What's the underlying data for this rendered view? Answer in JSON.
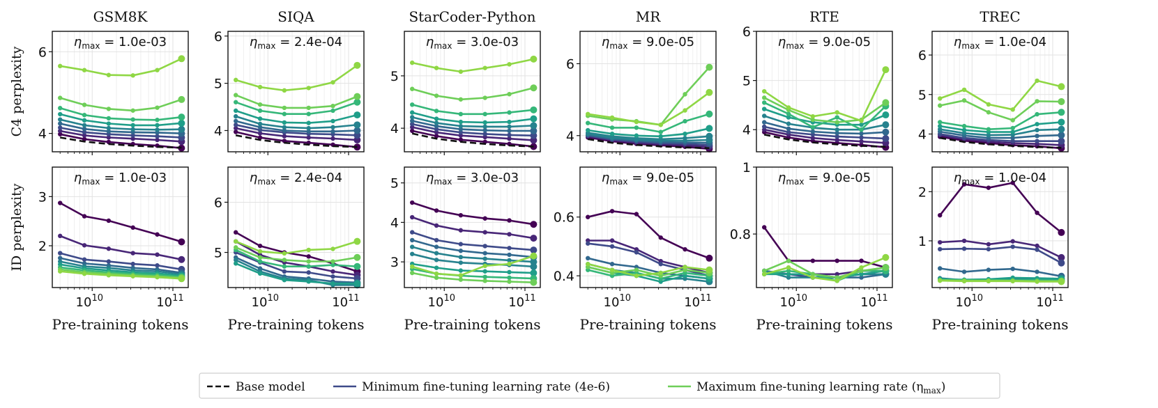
{
  "figure": {
    "row_labels": [
      "C4 perplexity",
      "ID perplexity"
    ],
    "xlabel": "Pre-training tokens",
    "x_ticks": [
      {
        "value": 10000000000,
        "base": "10",
        "exp": "10"
      },
      {
        "value": 100000000000,
        "base": "10",
        "exp": "11"
      }
    ],
    "eta_label": "η",
    "eta_sub": "max",
    "colors": {
      "base": "#111111",
      "ramp": [
        "#440154",
        "#482677",
        "#3e4a89",
        "#31688e",
        "#26828e",
        "#1f9e89",
        "#35b779",
        "#6ece58",
        "#8fd744"
      ]
    }
  },
  "legend": {
    "base_label": "Base model",
    "min_label": "Minimum fine-tuning learning rate (4e-6)",
    "max_label": "Maximum fine-tuning learning rate (η",
    "max_sub": "max",
    "max_close": ")",
    "min_color": "#3e4a89",
    "max_color": "#6ece58"
  },
  "chart_data": [
    {
      "type": "line",
      "task": "GSM8K",
      "title": "GSM8K",
      "row": "C4 perplexity",
      "eta_max": "1.0e-03",
      "ylim": [
        3.55,
        6.5
      ],
      "yticks": [
        4,
        6
      ],
      "x": [
        4000000000.0,
        8000000000.0,
        16000000000.0,
        32000000000.0,
        64000000000.0,
        128000000000.0
      ],
      "base": [
        3.9,
        3.8,
        3.74,
        3.7,
        3.67,
        3.65
      ],
      "series": [
        [
          3.98,
          3.86,
          3.79,
          3.74,
          3.7,
          3.64
        ],
        [
          4.06,
          3.95,
          3.9,
          3.87,
          3.84,
          3.8
        ],
        [
          4.14,
          4.03,
          3.98,
          3.95,
          3.93,
          3.9
        ],
        [
          4.24,
          4.11,
          4.05,
          4.03,
          4.02,
          4.0
        ],
        [
          4.34,
          4.2,
          4.13,
          4.1,
          4.09,
          4.1
        ],
        [
          4.47,
          4.32,
          4.24,
          4.2,
          4.2,
          4.25
        ],
        [
          4.62,
          4.45,
          4.37,
          4.34,
          4.33,
          4.4
        ],
        [
          4.87,
          4.7,
          4.6,
          4.56,
          4.63,
          4.83
        ],
        [
          5.65,
          5.55,
          5.43,
          5.42,
          5.55,
          5.83
        ]
      ]
    },
    {
      "type": "line",
      "task": "SIQA",
      "title": "SIQA",
      "row": "C4 perplexity",
      "eta_max": "2.4e-04",
      "ylim": [
        3.55,
        6.1
      ],
      "yticks": [
        4,
        5,
        6
      ],
      "x": [
        4000000000.0,
        8000000000.0,
        16000000000.0,
        32000000000.0,
        64000000000.0,
        128000000000.0
      ],
      "base": [
        3.9,
        3.8,
        3.74,
        3.7,
        3.67,
        3.65
      ],
      "series": [
        [
          3.97,
          3.85,
          3.78,
          3.74,
          3.7,
          3.65
        ],
        [
          4.05,
          3.94,
          3.88,
          3.85,
          3.83,
          3.8
        ],
        [
          4.12,
          4.01,
          3.96,
          3.93,
          3.92,
          3.9
        ],
        [
          4.2,
          4.07,
          4.0,
          3.98,
          3.98,
          4.0
        ],
        [
          4.3,
          4.14,
          4.07,
          4.05,
          4.07,
          4.12
        ],
        [
          4.42,
          4.25,
          4.17,
          4.16,
          4.2,
          4.33
        ],
        [
          4.6,
          4.42,
          4.35,
          4.35,
          4.42,
          4.6
        ],
        [
          4.75,
          4.55,
          4.48,
          4.48,
          4.52,
          4.72
        ],
        [
          5.07,
          4.92,
          4.85,
          4.9,
          5.02,
          5.38
        ]
      ]
    },
    {
      "type": "line",
      "task": "StarCoder-Python",
      "title": "StarCoder-Python",
      "row": "C4 perplexity",
      "eta_max": "3.0e-03",
      "ylim": [
        3.55,
        5.85
      ],
      "yticks": [
        4,
        5
      ],
      "x": [
        4000000000.0,
        8000000000.0,
        16000000000.0,
        32000000000.0,
        64000000000.0,
        128000000000.0
      ],
      "base": [
        3.9,
        3.8,
        3.74,
        3.7,
        3.67,
        3.65
      ],
      "series": [
        [
          3.95,
          3.85,
          3.78,
          3.74,
          3.7,
          3.65
        ],
        [
          4.02,
          3.92,
          3.86,
          3.83,
          3.8,
          3.77
        ],
        [
          4.08,
          3.98,
          3.92,
          3.89,
          3.87,
          3.86
        ],
        [
          4.14,
          4.04,
          3.98,
          3.96,
          3.95,
          3.95
        ],
        [
          4.21,
          4.1,
          4.04,
          4.03,
          4.03,
          4.05
        ],
        [
          4.3,
          4.18,
          4.12,
          4.11,
          4.12,
          4.18
        ],
        [
          4.45,
          4.33,
          4.27,
          4.27,
          4.3,
          4.35
        ],
        [
          4.75,
          4.62,
          4.55,
          4.58,
          4.65,
          4.77
        ],
        [
          5.25,
          5.15,
          5.08,
          5.15,
          5.22,
          5.32
        ]
      ]
    },
    {
      "type": "line",
      "task": "MR",
      "title": "MR",
      "row": "C4 perplexity",
      "eta_max": "9.0e-05",
      "ylim": [
        3.55,
        6.9
      ],
      "yticks": [
        4,
        6
      ],
      "x": [
        4000000000.0,
        8000000000.0,
        16000000000.0,
        32000000000.0,
        64000000000.0,
        128000000000.0
      ],
      "base": [
        3.9,
        3.8,
        3.74,
        3.7,
        3.67,
        3.65
      ],
      "series": [
        [
          3.95,
          3.84,
          3.77,
          3.73,
          3.69,
          3.63
        ],
        [
          3.98,
          3.87,
          3.8,
          3.76,
          3.73,
          3.69
        ],
        [
          4.0,
          3.89,
          3.83,
          3.79,
          3.77,
          3.74
        ],
        [
          4.02,
          3.91,
          3.86,
          3.82,
          3.81,
          3.8
        ],
        [
          4.05,
          3.94,
          3.89,
          3.86,
          3.86,
          3.88
        ],
        [
          4.08,
          3.98,
          3.93,
          3.9,
          3.93,
          3.98
        ],
        [
          4.15,
          4.05,
          4.0,
          3.98,
          4.05,
          4.2
        ],
        [
          4.35,
          4.22,
          4.22,
          4.1,
          4.4,
          4.6
        ],
        [
          4.55,
          4.45,
          4.4,
          4.3,
          5.15,
          5.9
        ],
        [
          4.6,
          4.5,
          4.38,
          4.3,
          4.7,
          5.2
        ]
      ]
    },
    {
      "type": "line",
      "task": "RTE",
      "title": "RTE",
      "row": "C4 perplexity",
      "eta_max": "9.0e-05",
      "ylim": [
        3.55,
        6.0
      ],
      "yticks": [
        4,
        5,
        6
      ],
      "x": [
        4000000000.0,
        8000000000.0,
        16000000000.0,
        32000000000.0,
        64000000000.0,
        128000000000.0
      ],
      "base": [
        3.9,
        3.8,
        3.74,
        3.7,
        3.67,
        3.65
      ],
      "series": [
        [
          3.95,
          3.84,
          3.77,
          3.73,
          3.69,
          3.64
        ],
        [
          4.0,
          3.9,
          3.83,
          3.79,
          3.76,
          3.73
        ],
        [
          4.06,
          3.95,
          3.9,
          3.86,
          3.84,
          3.82
        ],
        [
          4.15,
          4.02,
          3.96,
          3.93,
          3.92,
          3.95
        ],
        [
          4.28,
          4.12,
          4.04,
          4.0,
          4.0,
          4.1
        ],
        [
          4.42,
          4.25,
          4.15,
          4.1,
          4.1,
          4.3
        ],
        [
          4.55,
          4.32,
          4.05,
          4.25,
          4.0,
          4.48
        ],
        [
          4.65,
          4.4,
          4.2,
          4.15,
          4.2,
          4.55
        ],
        [
          4.78,
          4.45,
          4.27,
          4.35,
          4.18,
          5.22
        ]
      ]
    },
    {
      "type": "line",
      "task": "TREC",
      "title": "TREC",
      "row": "C4 perplexity",
      "eta_max": "1.0e-04",
      "ylim": [
        3.55,
        6.6
      ],
      "yticks": [
        4,
        5,
        6
      ],
      "x": [
        4000000000.0,
        8000000000.0,
        16000000000.0,
        32000000000.0,
        64000000000.0,
        128000000000.0
      ],
      "base": [
        3.9,
        3.8,
        3.74,
        3.7,
        3.67,
        3.65
      ],
      "series": [
        [
          3.93,
          3.83,
          3.77,
          3.72,
          3.69,
          3.64
        ],
        [
          3.97,
          3.87,
          3.81,
          3.77,
          3.75,
          3.72
        ],
        [
          4.0,
          3.9,
          3.85,
          3.82,
          3.82,
          3.82
        ],
        [
          4.06,
          3.96,
          3.9,
          3.9,
          3.95,
          3.97
        ],
        [
          4.12,
          4.02,
          3.97,
          3.98,
          4.1,
          4.12
        ],
        [
          4.2,
          4.1,
          4.05,
          4.05,
          4.25,
          4.3
        ],
        [
          4.3,
          4.2,
          4.12,
          4.15,
          4.5,
          4.55
        ],
        [
          4.72,
          4.85,
          4.55,
          4.35,
          4.83,
          4.82
        ],
        [
          4.9,
          5.12,
          4.75,
          4.62,
          5.35,
          5.2
        ]
      ]
    },
    {
      "type": "line",
      "task": "GSM8K",
      "title": "",
      "row": "ID perplexity",
      "eta_max": "1.0e-03",
      "ylim": [
        1.15,
        3.6
      ],
      "yticks": [
        2,
        3
      ],
      "x": [
        4000000000.0,
        8000000000.0,
        16000000000.0,
        32000000000.0,
        64000000000.0,
        128000000000.0
      ],
      "series": [
        [
          2.87,
          2.6,
          2.51,
          2.37,
          2.23,
          2.08
        ],
        [
          2.2,
          2.01,
          1.94,
          1.85,
          1.82,
          1.72
        ],
        [
          1.85,
          1.72,
          1.68,
          1.63,
          1.6,
          1.52
        ],
        [
          1.75,
          1.64,
          1.6,
          1.55,
          1.52,
          1.45
        ],
        [
          1.68,
          1.58,
          1.55,
          1.5,
          1.48,
          1.42
        ],
        [
          1.62,
          1.54,
          1.5,
          1.46,
          1.44,
          1.39
        ],
        [
          1.56,
          1.5,
          1.46,
          1.43,
          1.41,
          1.37
        ],
        [
          1.52,
          1.46,
          1.43,
          1.4,
          1.38,
          1.35
        ],
        [
          1.48,
          1.43,
          1.4,
          1.38,
          1.36,
          1.33
        ]
      ]
    },
    {
      "type": "line",
      "task": "SIQA",
      "title": "",
      "row": "ID perplexity",
      "eta_max": "2.4e-04",
      "ylim": [
        4.3,
        6.7
      ],
      "yticks": [
        5,
        6
      ],
      "x": [
        4000000000.0,
        8000000000.0,
        16000000000.0,
        32000000000.0,
        64000000000.0,
        128000000000.0
      ],
      "series": [
        [
          5.4,
          5.13,
          5.0,
          4.92,
          4.78,
          4.62
        ],
        [
          5.22,
          4.95,
          4.8,
          4.72,
          4.62,
          4.55
        ],
        [
          5.0,
          4.8,
          4.62,
          4.6,
          4.52,
          4.48
        ],
        [
          4.9,
          4.68,
          4.52,
          4.48,
          4.42,
          4.4
        ],
        [
          4.85,
          4.62,
          4.48,
          4.45,
          4.35,
          4.35
        ],
        [
          4.78,
          4.58,
          4.45,
          4.42,
          4.38,
          4.38
        ],
        [
          5.05,
          4.82,
          4.72,
          4.72,
          4.75,
          4.72
        ],
        [
          5.1,
          4.9,
          4.85,
          4.82,
          4.82,
          4.9
        ],
        [
          5.22,
          5.02,
          4.98,
          5.05,
          5.07,
          5.22
        ]
      ]
    },
    {
      "type": "line",
      "task": "StarCoder-Python",
      "title": "",
      "row": "ID perplexity",
      "eta_max": "3.0e-03",
      "ylim": [
        2.35,
        5.4
      ],
      "yticks": [
        3,
        4,
        5
      ],
      "x": [
        4000000000.0,
        8000000000.0,
        16000000000.0,
        32000000000.0,
        64000000000.0,
        128000000000.0
      ],
      "series": [
        [
          4.5,
          4.3,
          4.18,
          4.1,
          4.05,
          3.95
        ],
        [
          4.13,
          3.92,
          3.8,
          3.75,
          3.7,
          3.6
        ],
        [
          3.75,
          3.55,
          3.45,
          3.4,
          3.35,
          3.3
        ],
        [
          3.55,
          3.38,
          3.28,
          3.22,
          3.18,
          3.12
        ],
        [
          3.38,
          3.22,
          3.12,
          3.08,
          3.04,
          3.0
        ],
        [
          3.2,
          3.05,
          2.98,
          2.95,
          2.92,
          2.88
        ],
        [
          2.95,
          2.85,
          2.78,
          2.76,
          2.74,
          2.72
        ],
        [
          2.82,
          2.7,
          2.65,
          2.62,
          2.6,
          2.58
        ],
        [
          2.72,
          2.6,
          2.55,
          2.52,
          2.5,
          2.48
        ],
        [
          2.88,
          2.7,
          2.66,
          2.9,
          2.95,
          3.15
        ]
      ]
    },
    {
      "type": "line",
      "task": "MR",
      "title": "",
      "row": "ID perplexity",
      "eta_max": "9.0e-05",
      "ylim": [
        0.36,
        0.77
      ],
      "yticks": [
        0.4,
        0.6
      ],
      "x": [
        4000000000.0,
        8000000000.0,
        16000000000.0,
        32000000000.0,
        64000000000.0,
        128000000000.0
      ],
      "series": [
        [
          0.6,
          0.62,
          0.61,
          0.53,
          0.49,
          0.46
        ],
        [
          0.52,
          0.52,
          0.49,
          0.45,
          0.43,
          0.41
        ],
        [
          0.51,
          0.5,
          0.48,
          0.44,
          0.42,
          0.4
        ],
        [
          0.46,
          0.44,
          0.43,
          0.41,
          0.4,
          0.39
        ],
        [
          0.44,
          0.42,
          0.41,
          0.39,
          0.39,
          0.38
        ],
        [
          0.43,
          0.41,
          0.4,
          0.38,
          0.4,
          0.39
        ],
        [
          0.42,
          0.4,
          0.41,
          0.39,
          0.41,
          0.4
        ],
        [
          0.43,
          0.41,
          0.42,
          0.4,
          0.42,
          0.41
        ],
        [
          0.44,
          0.42,
          0.4,
          0.41,
          0.43,
          0.42
        ]
      ]
    },
    {
      "type": "line",
      "task": "RTE",
      "title": "",
      "row": "ID perplexity",
      "eta_max": "9.0e-05",
      "ylim": [
        0.64,
        1.0
      ],
      "yticks": [
        0.8,
        1.0
      ],
      "x": [
        4000000000.0,
        8000000000.0,
        16000000000.0,
        32000000000.0,
        64000000000.0,
        128000000000.0
      ],
      "series": [
        [
          0.82,
          0.72,
          0.72,
          0.72,
          0.72,
          0.7
        ],
        [
          0.69,
          0.68,
          0.68,
          0.68,
          0.69,
          0.69
        ],
        [
          0.69,
          0.68,
          0.67,
          0.67,
          0.68,
          0.68
        ],
        [
          0.69,
          0.68,
          0.68,
          0.67,
          0.67,
          0.68
        ],
        [
          0.69,
          0.67,
          0.67,
          0.67,
          0.68,
          0.68
        ],
        [
          0.68,
          0.68,
          0.68,
          0.67,
          0.68,
          0.69
        ],
        [
          0.68,
          0.69,
          0.68,
          0.66,
          0.69,
          0.69
        ],
        [
          0.69,
          0.72,
          0.68,
          0.67,
          0.69,
          0.7
        ],
        [
          0.68,
          0.7,
          0.67,
          0.66,
          0.7,
          0.73
        ]
      ]
    },
    {
      "type": "line",
      "task": "TREC",
      "title": "",
      "row": "ID perplexity",
      "eta_max": "1.0e-04",
      "ylim": [
        0.05,
        2.5
      ],
      "yticks": [
        1,
        2
      ],
      "x": [
        4000000000.0,
        8000000000.0,
        16000000000.0,
        32000000000.0,
        64000000000.0,
        128000000000.0
      ],
      "series": [
        [
          1.52,
          2.15,
          2.08,
          2.18,
          1.57,
          1.17
        ],
        [
          0.97,
          1.0,
          0.93,
          0.99,
          0.9,
          0.66
        ],
        [
          0.83,
          0.84,
          0.83,
          0.88,
          0.82,
          0.55
        ],
        [
          0.44,
          0.37,
          0.41,
          0.43,
          0.37,
          0.28
        ],
        [
          0.24,
          0.2,
          0.2,
          0.22,
          0.22,
          0.2
        ],
        [
          0.22,
          0.21,
          0.22,
          0.25,
          0.24,
          0.23
        ],
        [
          0.21,
          0.2,
          0.2,
          0.2,
          0.2,
          0.19
        ],
        [
          0.2,
          0.19,
          0.19,
          0.19,
          0.18,
          0.18
        ],
        [
          0.19,
          0.18,
          0.18,
          0.18,
          0.17,
          0.17
        ]
      ]
    }
  ]
}
